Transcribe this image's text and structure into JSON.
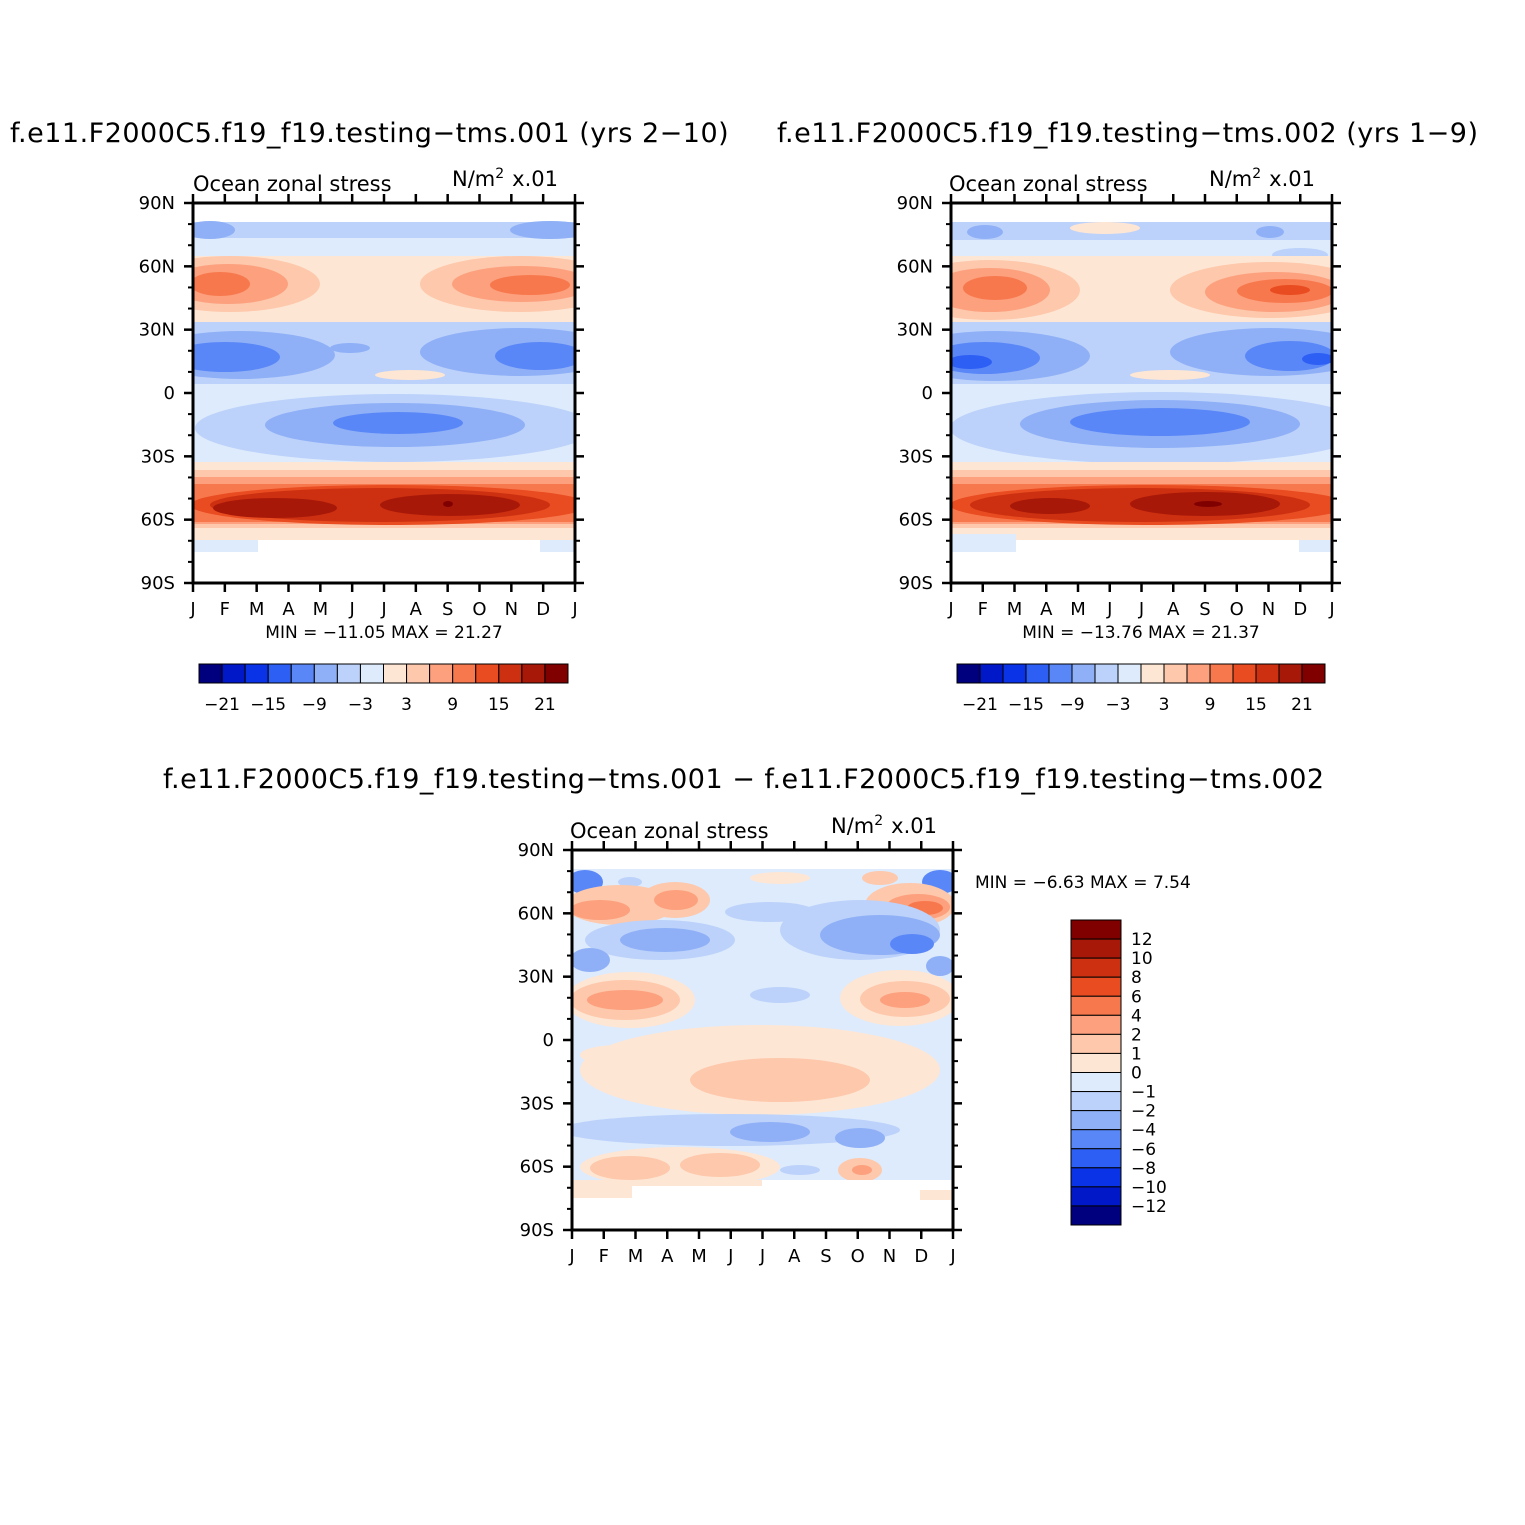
{
  "panels": [
    {
      "title": "f.e11.F2000C5.f19_f19.testing−tms.001 (yrs 2−10)",
      "field_label": "Ocean zonal stress",
      "units_base": "N/m",
      "units_exp": "2",
      "units_scale": "x.01",
      "minmax": "MIN = −11.05  MAX =  21.27"
    },
    {
      "title": "f.e11.F2000C5.f19_f19.testing−tms.002 (yrs 1−9)",
      "field_label": "Ocean zonal stress",
      "units_base": "N/m",
      "units_exp": "2",
      "units_scale": "x.01",
      "minmax": "MIN = −13.76  MAX =  21.37"
    },
    {
      "title": "f.e11.F2000C5.f19_f19.testing−tms.001 − f.e11.F2000C5.f19_f19.testing−tms.002",
      "field_label": "Ocean zonal stress",
      "units_base": "N/m",
      "units_exp": "2",
      "units_scale": "x.01",
      "minmax": "MIN =   −6.63  MAX =    7.54"
    }
  ],
  "chart_data": [
    {
      "type": "heatmap",
      "title": "f.e11.F2000C5.f19_f19.testing−tms.001 (yrs 2−10)",
      "field": "Ocean zonal stress",
      "units": "N/m² x.01",
      "x_tick_labels": [
        "J",
        "F",
        "M",
        "A",
        "M",
        "J",
        "J",
        "A",
        "S",
        "O",
        "N",
        "D",
        "J"
      ],
      "y_tick_labels": [
        "90N",
        "60N",
        "30N",
        "0",
        "30S",
        "60S",
        "90S"
      ],
      "ylim": [
        -90,
        90
      ],
      "min": -11.05,
      "max": 21.27,
      "colorbar": {
        "labels": [
          "−21",
          "−15",
          "−9",
          "−3",
          "3",
          "9",
          "15",
          "21"
        ],
        "colors": [
          "#00007f",
          "#0018c8",
          "#0a32e6",
          "#2e5ff5",
          "#5a87f7",
          "#8fb0f7",
          "#bcd2fa",
          "#deebfc",
          "#fee6d4",
          "#fdc8ab",
          "#fca07e",
          "#f8784d",
          "#e84c20",
          "#cc3010",
          "#a81808",
          "#800000"
        ]
      },
      "zonal_pattern": [
        {
          "lat": 80,
          "value": -5
        },
        {
          "lat": 70,
          "value": -1
        },
        {
          "lat": 50,
          "value": 8
        },
        {
          "lat": 35,
          "value": -2
        },
        {
          "lat": 15,
          "value": -9
        },
        {
          "lat": 0,
          "value": -2
        },
        {
          "lat": -15,
          "value": -7
        },
        {
          "lat": -30,
          "value": 2
        },
        {
          "lat": -53,
          "value": 17
        },
        {
          "lat": -65,
          "value": 4
        }
      ]
    },
    {
      "type": "heatmap",
      "title": "f.e11.F2000C5.f19_f19.testing−tms.002 (yrs 1−9)",
      "field": "Ocean zonal stress",
      "units": "N/m² x.01",
      "x_tick_labels": [
        "J",
        "F",
        "M",
        "A",
        "M",
        "J",
        "J",
        "A",
        "S",
        "O",
        "N",
        "D",
        "J"
      ],
      "y_tick_labels": [
        "90N",
        "60N",
        "30N",
        "0",
        "30S",
        "60S",
        "90S"
      ],
      "ylim": [
        -90,
        90
      ],
      "min": -13.76,
      "max": 21.37,
      "colorbar": {
        "labels": [
          "−21",
          "−15",
          "−9",
          "−3",
          "3",
          "9",
          "15",
          "21"
        ],
        "colors": [
          "#00007f",
          "#0018c8",
          "#0a32e6",
          "#2e5ff5",
          "#5a87f7",
          "#8fb0f7",
          "#bcd2fa",
          "#deebfc",
          "#fee6d4",
          "#fdc8ab",
          "#fca07e",
          "#f8784d",
          "#e84c20",
          "#cc3010",
          "#a81808",
          "#800000"
        ]
      },
      "zonal_pattern": [
        {
          "lat": 80,
          "value": -4
        },
        {
          "lat": 70,
          "value": -1
        },
        {
          "lat": 50,
          "value": 10
        },
        {
          "lat": 35,
          "value": -3
        },
        {
          "lat": 15,
          "value": -11
        },
        {
          "lat": 0,
          "value": -2
        },
        {
          "lat": -15,
          "value": -8
        },
        {
          "lat": -30,
          "value": 2
        },
        {
          "lat": -53,
          "value": 17
        },
        {
          "lat": -65,
          "value": 4
        }
      ]
    },
    {
      "type": "heatmap",
      "title": "f.e11.F2000C5.f19_f19.testing−tms.001 − f.e11.F2000C5.f19_f19.testing−tms.002",
      "field": "Ocean zonal stress",
      "units": "N/m² x.01",
      "x_tick_labels": [
        "J",
        "F",
        "M",
        "A",
        "M",
        "J",
        "J",
        "A",
        "S",
        "O",
        "N",
        "D",
        "J"
      ],
      "y_tick_labels": [
        "90N",
        "60N",
        "30N",
        "0",
        "30S",
        "60S",
        "90S"
      ],
      "ylim": [
        -90,
        90
      ],
      "min": -6.63,
      "max": 7.54,
      "colorbar": {
        "labels": [
          "12",
          "10",
          "8",
          "6",
          "4",
          "2",
          "1",
          "0",
          "−1",
          "−2",
          "−4",
          "−6",
          "−8",
          "−10",
          "−12"
        ],
        "colors": [
          "#800000",
          "#a81808",
          "#cc3010",
          "#e84c20",
          "#f8784d",
          "#fca07e",
          "#fdc8ab",
          "#fee6d4",
          "#deebfc",
          "#bcd2fa",
          "#8fb0f7",
          "#5a87f7",
          "#2e5ff5",
          "#0a32e6",
          "#0018c8",
          "#00007f"
        ]
      },
      "zonal_pattern": [
        {
          "lat": 80,
          "value": 0
        },
        {
          "lat": 60,
          "value": 3
        },
        {
          "lat": 45,
          "value": -3
        },
        {
          "lat": 30,
          "value": -1
        },
        {
          "lat": 20,
          "value": 2
        },
        {
          "lat": 0,
          "value": -0.5
        },
        {
          "lat": -20,
          "value": 0.5
        },
        {
          "lat": -45,
          "value": -2
        },
        {
          "lat": -60,
          "value": 2
        },
        {
          "lat": -70,
          "value": 0.5
        }
      ]
    }
  ]
}
